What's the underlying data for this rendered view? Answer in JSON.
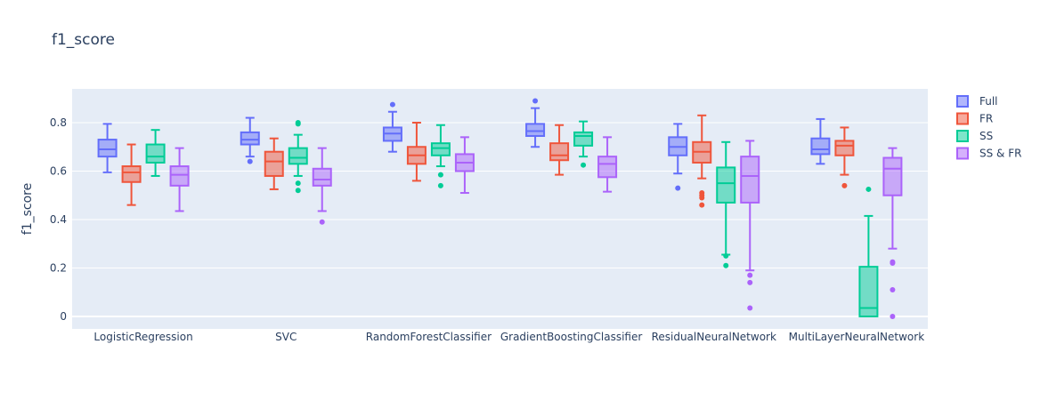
{
  "chart_data": {
    "type": "box",
    "title": "f1_score",
    "xlabel": "",
    "ylabel": "f1_score",
    "ylim": [
      -0.05,
      0.93
    ],
    "yticks": [
      0,
      0.2,
      0.4,
      0.6,
      0.8
    ],
    "ytick_labels": [
      "0",
      "0.2",
      "0.4",
      "0.6",
      "0.8"
    ],
    "grid": true,
    "legend_position": "top-right",
    "categories": [
      "LogisticRegression",
      "SVC",
      "RandomForestClassifier",
      "GradientBoostingClassifier",
      "ResidualNeuralNetwork",
      "MultiLayerNeuralNetwork"
    ],
    "series": [
      {
        "name": "Full",
        "color": "#636efa",
        "boxes": [
          {
            "min": 0.595,
            "q1": 0.66,
            "median": 0.69,
            "q3": 0.73,
            "max": 0.795,
            "outliers": []
          },
          {
            "min": 0.66,
            "q1": 0.71,
            "median": 0.73,
            "q3": 0.76,
            "max": 0.82,
            "outliers": [
              0.64
            ]
          },
          {
            "min": 0.68,
            "q1": 0.725,
            "median": 0.755,
            "q3": 0.78,
            "max": 0.845,
            "outliers": [
              0.875
            ]
          },
          {
            "min": 0.7,
            "q1": 0.745,
            "median": 0.765,
            "q3": 0.795,
            "max": 0.86,
            "outliers": [
              0.89
            ]
          },
          {
            "min": 0.59,
            "q1": 0.665,
            "median": 0.7,
            "q3": 0.74,
            "max": 0.795,
            "outliers": [
              0.53
            ]
          },
          {
            "min": 0.63,
            "q1": 0.67,
            "median": 0.69,
            "q3": 0.735,
            "max": 0.815,
            "outliers": []
          }
        ]
      },
      {
        "name": "FR",
        "color": "#ef553b",
        "boxes": [
          {
            "min": 0.46,
            "q1": 0.555,
            "median": 0.595,
            "q3": 0.62,
            "max": 0.71,
            "outliers": []
          },
          {
            "min": 0.525,
            "q1": 0.58,
            "median": 0.64,
            "q3": 0.68,
            "max": 0.735,
            "outliers": []
          },
          {
            "min": 0.56,
            "q1": 0.63,
            "median": 0.665,
            "q3": 0.7,
            "max": 0.8,
            "outliers": []
          },
          {
            "min": 0.585,
            "q1": 0.645,
            "median": 0.665,
            "q3": 0.715,
            "max": 0.79,
            "outliers": []
          },
          {
            "min": 0.57,
            "q1": 0.635,
            "median": 0.68,
            "q3": 0.72,
            "max": 0.83,
            "outliers": [
              0.51,
              0.5,
              0.49,
              0.46
            ]
          },
          {
            "min": 0.585,
            "q1": 0.665,
            "median": 0.705,
            "q3": 0.725,
            "max": 0.78,
            "outliers": [
              0.54
            ]
          }
        ]
      },
      {
        "name": "SS",
        "color": "#00cc96",
        "boxes": [
          {
            "min": 0.58,
            "q1": 0.635,
            "median": 0.66,
            "q3": 0.71,
            "max": 0.77,
            "outliers": []
          },
          {
            "min": 0.58,
            "q1": 0.63,
            "median": 0.655,
            "q3": 0.695,
            "max": 0.75,
            "outliers": [
              0.8,
              0.795,
              0.55,
              0.52
            ]
          },
          {
            "min": 0.62,
            "q1": 0.665,
            "median": 0.695,
            "q3": 0.715,
            "max": 0.79,
            "outliers": [
              0.585,
              0.54
            ]
          },
          {
            "min": 0.66,
            "q1": 0.705,
            "median": 0.745,
            "q3": 0.76,
            "max": 0.805,
            "outliers": [
              0.625
            ]
          },
          {
            "min": 0.255,
            "q1": 0.47,
            "median": 0.55,
            "q3": 0.615,
            "max": 0.72,
            "outliers": [
              0.25,
              0.21
            ]
          },
          {
            "min": 0.0,
            "q1": 0.0,
            "median": 0.035,
            "q3": 0.205,
            "max": 0.415,
            "outliers": [
              0.525
            ]
          }
        ]
      },
      {
        "name": "SS & FR",
        "color": "#ab63fa",
        "boxes": [
          {
            "min": 0.435,
            "q1": 0.54,
            "median": 0.585,
            "q3": 0.62,
            "max": 0.695,
            "outliers": []
          },
          {
            "min": 0.435,
            "q1": 0.54,
            "median": 0.565,
            "q3": 0.61,
            "max": 0.695,
            "outliers": [
              0.39
            ]
          },
          {
            "min": 0.51,
            "q1": 0.6,
            "median": 0.635,
            "q3": 0.67,
            "max": 0.74,
            "outliers": []
          },
          {
            "min": 0.515,
            "q1": 0.575,
            "median": 0.63,
            "q3": 0.66,
            "max": 0.74,
            "outliers": []
          },
          {
            "min": 0.19,
            "q1": 0.47,
            "median": 0.58,
            "q3": 0.66,
            "max": 0.725,
            "outliers": [
              0.17,
              0.14,
              0.035
            ]
          },
          {
            "min": 0.28,
            "q1": 0.5,
            "median": 0.61,
            "q3": 0.655,
            "max": 0.695,
            "outliers": [
              0.225,
              0.22,
              0.11,
              0.0
            ]
          }
        ]
      }
    ]
  }
}
